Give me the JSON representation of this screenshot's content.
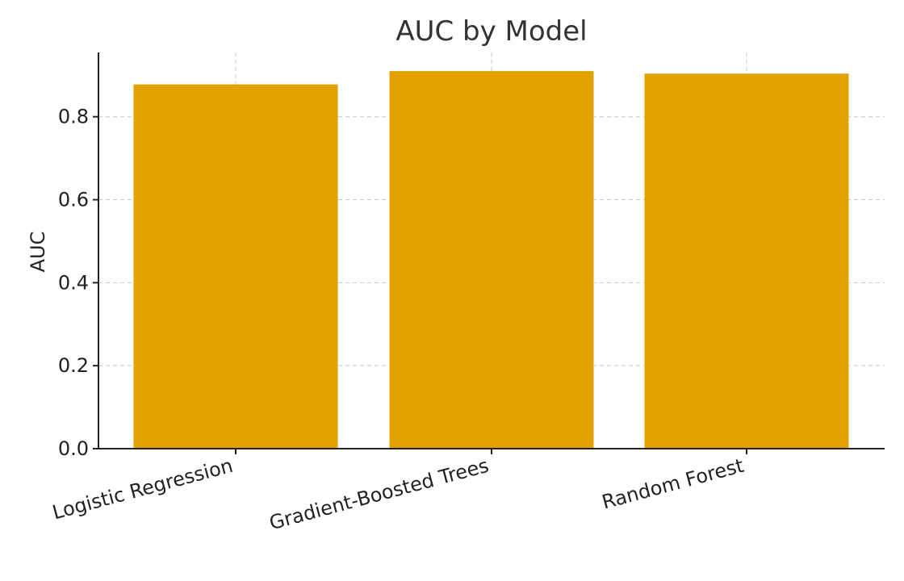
{
  "chart_data": {
    "type": "bar",
    "title": "AUC by Model",
    "xlabel": "",
    "ylabel": "AUC",
    "categories": [
      "Logistic Regression",
      "Gradient-Boosted Trees",
      "Random Forest"
    ],
    "values": [
      0.878,
      0.91,
      0.904
    ],
    "ylim": [
      0,
      0.955
    ],
    "yticks": [
      0.0,
      0.2,
      0.4,
      0.6,
      0.8
    ],
    "ytick_labels": [
      "0.0",
      "0.2",
      "0.4",
      "0.6",
      "0.8"
    ],
    "bar_color": "#E3A100",
    "grid": true,
    "grid_style": "dashed",
    "x_tick_rotation": "angled"
  }
}
